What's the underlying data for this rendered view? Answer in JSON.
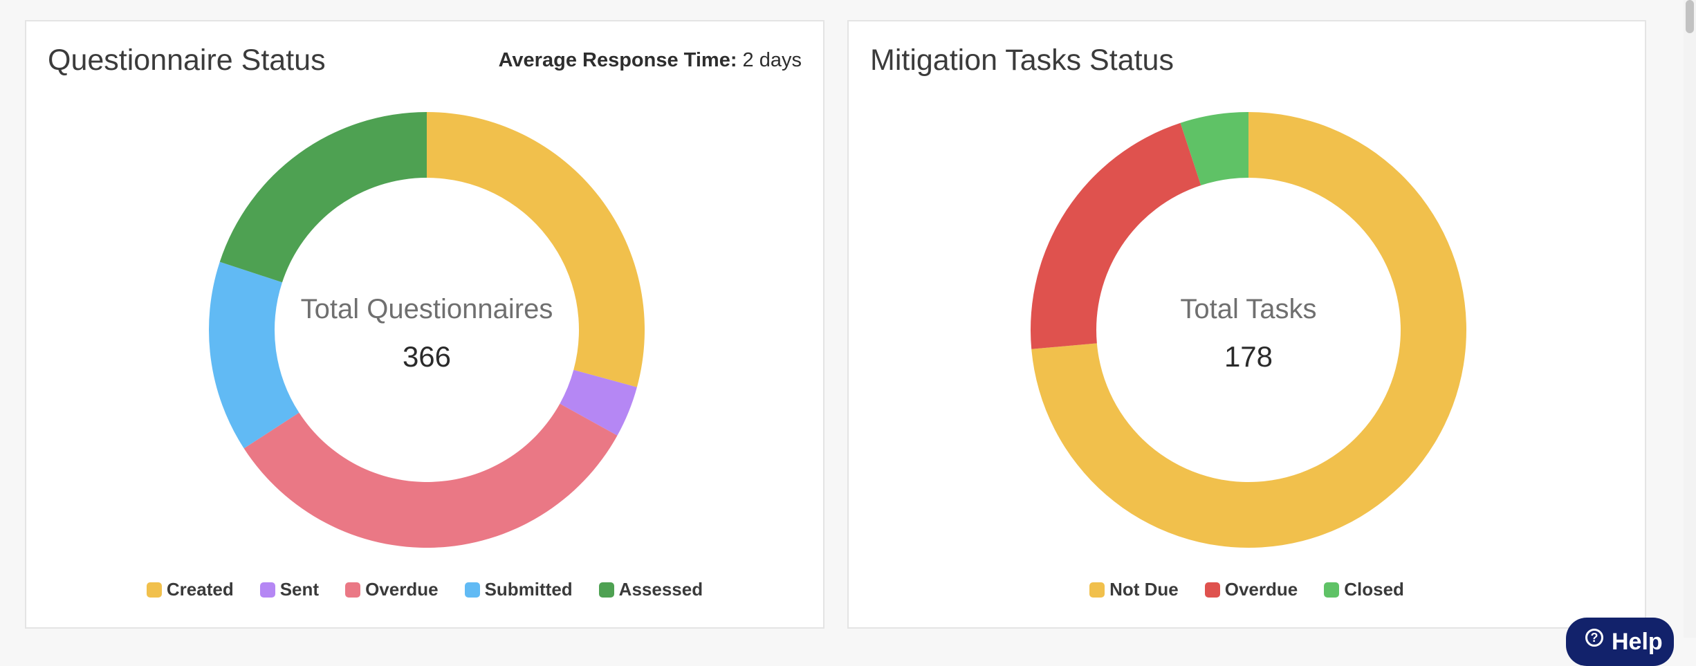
{
  "chart_data": [
    {
      "type": "pie",
      "title": "Questionnaire Status",
      "center_label": "Total Questionnaires",
      "total": 366,
      "labels": [
        "Created",
        "Sent",
        "Overdue",
        "Submitted",
        "Assessed"
      ],
      "values": [
        107,
        14,
        120,
        52,
        73
      ],
      "colors": [
        "#f1c04c",
        "#b587f4",
        "#ea7885",
        "#61baf4",
        "#4ea152"
      ],
      "legend_position": "bottom"
    },
    {
      "type": "pie",
      "title": "Mitigation Tasks Status",
      "center_label": "Total Tasks",
      "total": 178,
      "labels": [
        "Not Due",
        "Overdue",
        "Closed"
      ],
      "values": [
        131,
        38,
        9
      ],
      "colors": [
        "#f1c04c",
        "#df524e",
        "#5fc266"
      ],
      "legend_position": "bottom"
    }
  ],
  "questionnaire_card": {
    "avg_label": "Average Response Time:",
    "avg_value": "2 days"
  },
  "help": {
    "label": "Help"
  }
}
